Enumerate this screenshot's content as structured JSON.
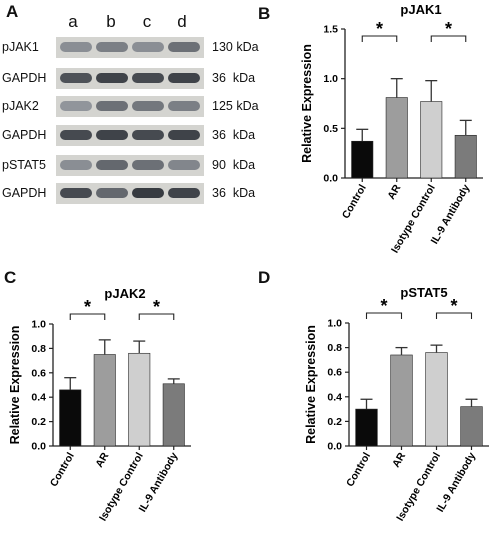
{
  "panels": {
    "a": "A",
    "b": "B",
    "c": "C",
    "d": "D"
  },
  "blot": {
    "lanes": [
      "a",
      "b",
      "c",
      "d"
    ],
    "rows": [
      {
        "protein": "pJAK1",
        "size": "130 kDa",
        "intensities": [
          0.35,
          0.45,
          0.35,
          0.55
        ]
      },
      {
        "protein": "GAPDH",
        "size": "36  kDa",
        "intensities": [
          0.75,
          0.85,
          0.8,
          0.85
        ]
      },
      {
        "protein": "pJAK2",
        "size": "125 kDa",
        "intensities": [
          0.3,
          0.55,
          0.5,
          0.45
        ]
      },
      {
        "protein": "GAPDH",
        "size": "36  kDa",
        "intensities": [
          0.8,
          0.85,
          0.8,
          0.85
        ]
      },
      {
        "protein": "pSTAT5",
        "size": "90  kDa",
        "intensities": [
          0.35,
          0.6,
          0.55,
          0.4
        ]
      },
      {
        "protein": "GAPDH",
        "size": "36  kDa",
        "intensities": [
          0.8,
          0.6,
          0.9,
          0.85
        ]
      }
    ]
  },
  "chart_data": [
    {
      "type": "bar",
      "title": "pJAK1",
      "ylabel": "Relative Expression",
      "categories": [
        "Control",
        "AR",
        "Isotype Control",
        "IL-9 Antibody"
      ],
      "values": [
        0.37,
        0.81,
        0.77,
        0.43
      ],
      "errors": [
        0.12,
        0.19,
        0.21,
        0.15
      ],
      "colors": [
        "#0a0a0a",
        "#9d9d9d",
        "#cfcfcf",
        "#7b7b7b"
      ],
      "ylim": [
        0,
        1.5
      ],
      "yticks": [
        "0.0",
        "0.5",
        "1.0",
        "1.5"
      ],
      "significance": [
        {
          "from": 0,
          "to": 1,
          "label": "*"
        },
        {
          "from": 2,
          "to": 3,
          "label": "*"
        }
      ]
    },
    {
      "type": "bar",
      "title": "pJAK2",
      "ylabel": "Relative Expression",
      "categories": [
        "Control",
        "AR",
        "Isotype Control",
        "IL-9 Antibody"
      ],
      "values": [
        0.46,
        0.75,
        0.76,
        0.51
      ],
      "errors": [
        0.1,
        0.12,
        0.1,
        0.04
      ],
      "colors": [
        "#0a0a0a",
        "#9d9d9d",
        "#cfcfcf",
        "#7b7b7b"
      ],
      "ylim": [
        0,
        1.0
      ],
      "yticks": [
        "0.0",
        "0.2",
        "0.4",
        "0.6",
        "0.8",
        "1.0"
      ],
      "significance": [
        {
          "from": 0,
          "to": 1,
          "label": "*"
        },
        {
          "from": 2,
          "to": 3,
          "label": "*"
        }
      ]
    },
    {
      "type": "bar",
      "title": "pSTAT5",
      "ylabel": "Relative Expression",
      "categories": [
        "Control",
        "AR",
        "Isotype Control",
        "IL-9 Antibody"
      ],
      "values": [
        0.3,
        0.74,
        0.76,
        0.32
      ],
      "errors": [
        0.08,
        0.06,
        0.06,
        0.06
      ],
      "colors": [
        "#0a0a0a",
        "#9d9d9d",
        "#cfcfcf",
        "#7b7b7b"
      ],
      "ylim": [
        0,
        1.0
      ],
      "yticks": [
        "0.0",
        "0.2",
        "0.4",
        "0.6",
        "0.8",
        "1.0"
      ],
      "significance": [
        {
          "from": 0,
          "to": 1,
          "label": "*"
        },
        {
          "from": 2,
          "to": 3,
          "label": "*"
        }
      ]
    }
  ]
}
